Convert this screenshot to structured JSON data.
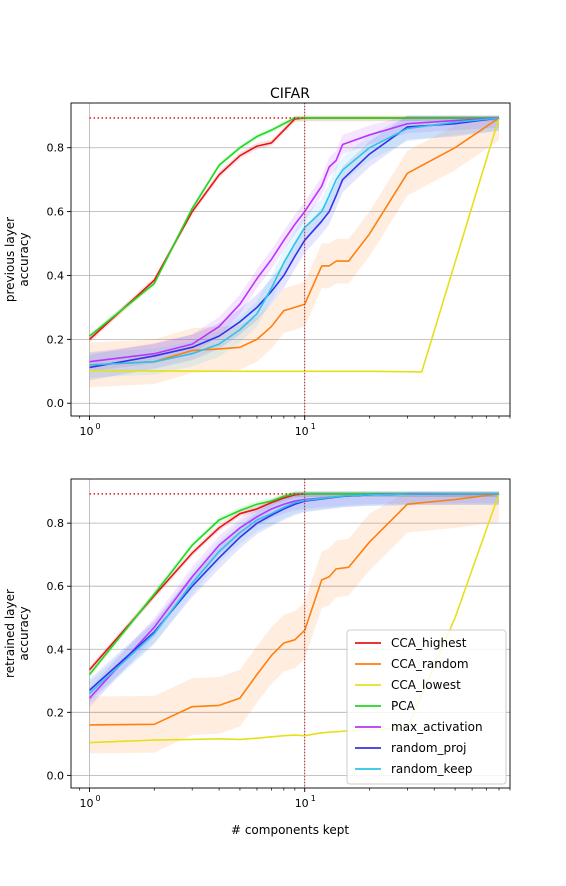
{
  "title": "CIFAR",
  "xlabel": "# components kept",
  "colors": {
    "CCA_highest": "#e8141a",
    "CCA_random": "#ff7f0e",
    "CCA_lowest": "#e6e01a",
    "PCA": "#1fd81f",
    "max_activation": "#bb33ff",
    "random_proj": "#3333ee",
    "random_keep": "#2ec2e8",
    "reference": "#e8141a",
    "grid": "#b0b0b0"
  },
  "legend": [
    "CCA_highest",
    "CCA_random",
    "CCA_lowest",
    "PCA",
    "max_activation",
    "random_proj",
    "random_keep"
  ],
  "chart_data": [
    {
      "type": "line",
      "title": "CIFAR",
      "xlabel": "",
      "ylabel_lines": [
        "previous layer",
        "accuracy"
      ],
      "xscale": "log",
      "xlim": [
        0.82,
        90
      ],
      "ylim": [
        -0.04,
        0.94
      ],
      "xticks": [
        {
          "value": 1,
          "label": "1",
          "exp": "0"
        },
        {
          "value": 10,
          "label": "1",
          "exp": "1"
        }
      ],
      "yticks": [
        0.0,
        0.2,
        0.4,
        0.6,
        0.8
      ],
      "ytick_labels": [
        "0.0",
        "0.2",
        "0.4",
        "0.6",
        "0.8"
      ],
      "grid": true,
      "reference": {
        "hline_y": 0.893,
        "hline_x": [
          1,
          10
        ],
        "vline_x": 10
      },
      "series": [
        {
          "key": "CCA_highest",
          "x": [
            1,
            2,
            3,
            4,
            5,
            6,
            7,
            8,
            9,
            10,
            15,
            20,
            30,
            50,
            80
          ],
          "y": [
            0.2,
            0.385,
            0.6,
            0.715,
            0.775,
            0.805,
            0.815,
            0.855,
            0.89,
            0.893,
            0.893,
            0.893,
            0.893,
            0.893,
            0.893
          ],
          "band": 0.01
        },
        {
          "key": "CCA_random",
          "x": [
            1,
            2,
            3,
            4,
            5,
            6,
            7,
            8,
            9,
            10,
            12,
            13,
            14,
            16,
            20,
            30,
            50,
            80
          ],
          "y": [
            0.12,
            0.13,
            0.165,
            0.17,
            0.175,
            0.2,
            0.24,
            0.29,
            0.3,
            0.31,
            0.43,
            0.43,
            0.445,
            0.445,
            0.53,
            0.72,
            0.8,
            0.893
          ],
          "band": 0.07
        },
        {
          "key": "CCA_lowest",
          "x": [
            1,
            2,
            5,
            10,
            20,
            35,
            80
          ],
          "y": [
            0.102,
            0.101,
            0.1,
            0.1,
            0.1,
            0.098,
            0.893
          ],
          "band": 0
        },
        {
          "key": "PCA",
          "x": [
            1,
            2,
            3,
            4,
            5,
            6,
            7,
            8,
            9,
            10,
            15,
            20,
            30,
            50,
            80
          ],
          "y": [
            0.21,
            0.375,
            0.61,
            0.745,
            0.8,
            0.835,
            0.855,
            0.875,
            0.893,
            0.893,
            0.893,
            0.893,
            0.893,
            0.893,
            0.893
          ],
          "band": 0.008
        },
        {
          "key": "max_activation",
          "x": [
            1,
            2,
            3,
            4,
            5,
            6,
            7,
            8,
            9,
            10,
            12,
            13,
            14,
            15,
            20,
            30,
            50,
            80
          ],
          "y": [
            0.13,
            0.155,
            0.185,
            0.24,
            0.31,
            0.39,
            0.45,
            0.51,
            0.56,
            0.6,
            0.68,
            0.74,
            0.76,
            0.81,
            0.84,
            0.875,
            0.885,
            0.893
          ],
          "band": 0.03
        },
        {
          "key": "random_proj",
          "x": [
            1,
            2,
            3,
            4,
            5,
            6,
            7,
            8,
            9,
            10,
            12,
            13,
            14,
            15,
            20,
            30,
            50,
            80
          ],
          "y": [
            0.112,
            0.148,
            0.175,
            0.21,
            0.255,
            0.3,
            0.35,
            0.4,
            0.46,
            0.51,
            0.57,
            0.6,
            0.65,
            0.7,
            0.78,
            0.865,
            0.875,
            0.893
          ],
          "band": 0.04
        },
        {
          "key": "random_keep",
          "x": [
            1,
            2,
            3,
            4,
            5,
            6,
            7,
            8,
            9,
            10,
            12,
            13,
            14,
            15,
            20,
            30,
            50,
            80
          ],
          "y": [
            0.12,
            0.13,
            0.155,
            0.185,
            0.23,
            0.28,
            0.36,
            0.44,
            0.5,
            0.55,
            0.6,
            0.65,
            0.7,
            0.73,
            0.8,
            0.86,
            0.88,
            0.893
          ],
          "band": 0.04
        }
      ]
    },
    {
      "type": "line",
      "title": "",
      "xlabel": "# components kept",
      "ylabel_lines": [
        "retrained layer",
        "accuracy"
      ],
      "xscale": "log",
      "xlim": [
        0.82,
        90
      ],
      "ylim": [
        -0.04,
        0.94
      ],
      "xticks": [
        {
          "value": 1,
          "label": "1",
          "exp": "0"
        },
        {
          "value": 10,
          "label": "1",
          "exp": "1"
        }
      ],
      "yticks": [
        0.0,
        0.2,
        0.4,
        0.6,
        0.8
      ],
      "ytick_labels": [
        "0.0",
        "0.2",
        "0.4",
        "0.6",
        "0.8"
      ],
      "grid": true,
      "legend_position": "lower-right",
      "reference": {
        "hline_y": 0.893,
        "hline_x": [
          1,
          10
        ],
        "vline_x": 10
      },
      "series": [
        {
          "key": "CCA_highest",
          "x": [
            1,
            2,
            3,
            4,
            5,
            6,
            7,
            8,
            9,
            10,
            15,
            20,
            30,
            50,
            80
          ],
          "y": [
            0.335,
            0.57,
            0.705,
            0.785,
            0.83,
            0.845,
            0.865,
            0.88,
            0.89,
            0.893,
            0.893,
            0.893,
            0.893,
            0.893,
            0.893
          ],
          "band": 0.01
        },
        {
          "key": "CCA_random",
          "x": [
            1,
            2,
            3,
            4,
            5,
            6,
            7,
            8,
            9,
            10,
            12,
            13,
            14,
            16,
            20,
            30,
            50,
            80
          ],
          "y": [
            0.16,
            0.162,
            0.218,
            0.222,
            0.245,
            0.32,
            0.38,
            0.42,
            0.43,
            0.46,
            0.62,
            0.63,
            0.655,
            0.66,
            0.74,
            0.86,
            0.875,
            0.893
          ],
          "band": 0.09
        },
        {
          "key": "CCA_lowest",
          "x": [
            1,
            2,
            3,
            4,
            5,
            6,
            8,
            9,
            10,
            12,
            15,
            20,
            30,
            50,
            80
          ],
          "y": [
            0.104,
            0.112,
            0.114,
            0.116,
            0.114,
            0.118,
            0.126,
            0.128,
            0.126,
            0.135,
            0.14,
            0.145,
            0.15,
            0.5,
            0.893
          ],
          "band": 0
        },
        {
          "key": "PCA",
          "x": [
            1,
            2,
            3,
            4,
            5,
            6,
            7,
            8,
            9,
            10,
            15,
            20,
            30,
            50,
            80
          ],
          "y": [
            0.32,
            0.575,
            0.73,
            0.81,
            0.84,
            0.86,
            0.87,
            0.885,
            0.893,
            0.893,
            0.893,
            0.893,
            0.893,
            0.893,
            0.893
          ],
          "band": 0.01
        },
        {
          "key": "max_activation",
          "x": [
            1,
            2,
            3,
            4,
            5,
            6,
            7,
            8,
            9,
            10,
            15,
            20,
            30,
            50,
            80
          ],
          "y": [
            0.245,
            0.47,
            0.63,
            0.73,
            0.785,
            0.82,
            0.845,
            0.86,
            0.87,
            0.875,
            0.885,
            0.89,
            0.892,
            0.893,
            0.893
          ],
          "band": 0.03
        },
        {
          "key": "random_proj",
          "x": [
            1,
            2,
            3,
            4,
            5,
            6,
            7,
            8,
            9,
            10,
            15,
            20,
            30,
            50,
            80
          ],
          "y": [
            0.27,
            0.455,
            0.6,
            0.69,
            0.755,
            0.8,
            0.825,
            0.845,
            0.86,
            0.87,
            0.885,
            0.89,
            0.892,
            0.893,
            0.893
          ],
          "band": 0.035
        },
        {
          "key": "random_keep",
          "x": [
            1,
            2,
            3,
            4,
            5,
            6,
            7,
            8,
            9,
            10,
            15,
            20,
            30,
            50,
            80
          ],
          "y": [
            0.26,
            0.45,
            0.61,
            0.71,
            0.77,
            0.81,
            0.83,
            0.85,
            0.865,
            0.872,
            0.886,
            0.89,
            0.892,
            0.893,
            0.893
          ],
          "band": 0.035
        }
      ]
    }
  ]
}
